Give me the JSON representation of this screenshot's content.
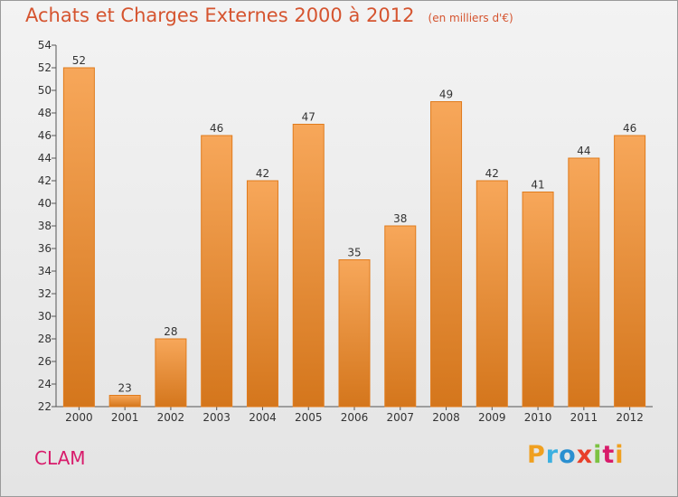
{
  "title": "Achats et Charges Externes 2000 à 2012",
  "subtitle": "(en milliers d'€)",
  "commune": "CLAM",
  "brand": {
    "letters": [
      "P",
      "r",
      "o",
      "x",
      "i",
      "t",
      "i"
    ],
    "colors": [
      "#f0a020",
      "#3cb0e0",
      "#2a8fd0",
      "#e8402a",
      "#7cc242",
      "#d81b6b",
      "#f0a020"
    ]
  },
  "colors": {
    "bar_light": "#f7a75a",
    "bar_dark": "#d4761c",
    "title": "#d5542f",
    "commune": "#d81b6b"
  },
  "chart_data": {
    "type": "bar",
    "categories": [
      "2000",
      "2001",
      "2002",
      "2003",
      "2004",
      "2005",
      "2006",
      "2007",
      "2008",
      "2009",
      "2010",
      "2011",
      "2012"
    ],
    "values": [
      52,
      23,
      28,
      46,
      42,
      47,
      35,
      38,
      49,
      42,
      41,
      44,
      46
    ],
    "title": "Achats et Charges Externes 2000 à 2012",
    "subtitle": "(en milliers d'€)",
    "xlabel": "",
    "ylabel": "",
    "ylim": [
      22,
      54
    ],
    "yticks": [
      22,
      24,
      26,
      28,
      30,
      32,
      34,
      36,
      38,
      40,
      42,
      44,
      46,
      48,
      50,
      52,
      54
    ],
    "grid": false,
    "legend": "none"
  }
}
